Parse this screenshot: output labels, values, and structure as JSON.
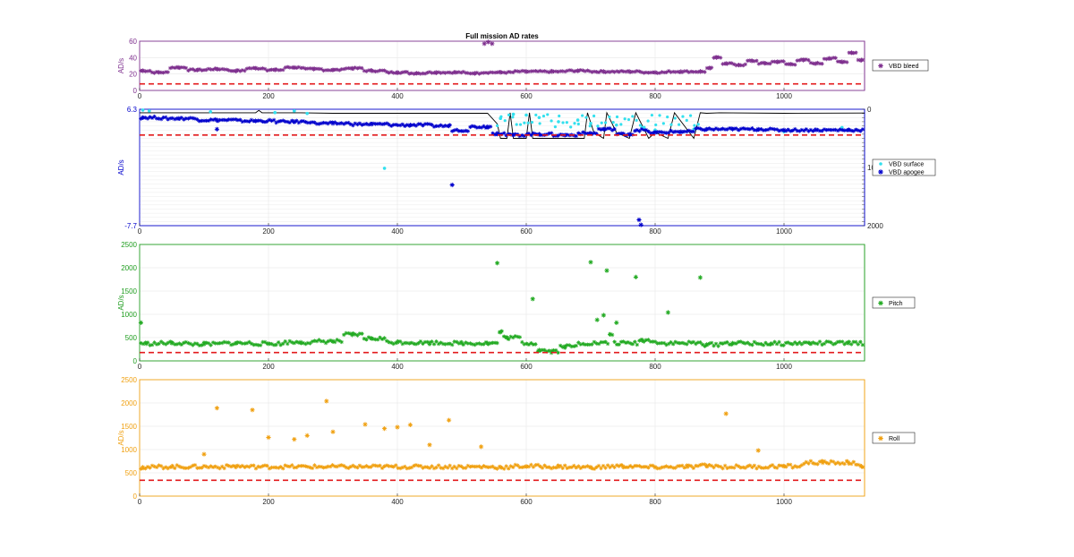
{
  "chart_data": [
    {
      "type": "scatter",
      "title": "Full mission AD rates",
      "ylabel": "AD/s",
      "color": "#7e2f8e",
      "xlim": [
        0,
        1125
      ],
      "ylim": [
        0,
        60
      ],
      "xticks": [
        0,
        200,
        400,
        600,
        800,
        1000
      ],
      "yticks": [
        0,
        20,
        40,
        60
      ],
      "legend": {
        "position": "right",
        "entries": [
          "VBD bleed"
        ]
      },
      "threshold": 8,
      "series": [
        {
          "name": "VBD bleed",
          "color": "#7e2f8e",
          "marker": "star",
          "points": [
            [
              5,
              24
            ],
            [
              30,
              22
            ],
            [
              60,
              28
            ],
            [
              90,
              25
            ],
            [
              120,
              26
            ],
            [
              150,
              24
            ],
            [
              180,
              27
            ],
            [
              210,
              25
            ],
            [
              240,
              28
            ],
            [
              270,
              26
            ],
            [
              300,
              25
            ],
            [
              330,
              27
            ],
            [
              360,
              24
            ],
            [
              400,
              22
            ],
            [
              430,
              21
            ],
            [
              460,
              22
            ],
            [
              490,
              22
            ],
            [
              520,
              21
            ],
            [
              535,
              57
            ],
            [
              541,
              59
            ],
            [
              547,
              57
            ],
            [
              560,
              22
            ],
            [
              600,
              23
            ],
            [
              640,
              23
            ],
            [
              680,
              24
            ],
            [
              720,
              23
            ],
            [
              760,
              23
            ],
            [
              800,
              22
            ],
            [
              840,
              23
            ],
            [
              870,
              23
            ],
            [
              885,
              27
            ],
            [
              895,
              40
            ],
            [
              910,
              33
            ],
            [
              930,
              31
            ],
            [
              950,
              36
            ],
            [
              970,
              33
            ],
            [
              990,
              35
            ],
            [
              1010,
              32
            ],
            [
              1030,
              37
            ],
            [
              1050,
              33
            ],
            [
              1070,
              39
            ],
            [
              1090,
              35
            ],
            [
              1105,
              46
            ],
            [
              1120,
              37
            ]
          ]
        }
      ]
    },
    {
      "type": "scatter",
      "ylabel": "AD/s",
      "color": "#0000cc",
      "xlim": [
        0,
        1125
      ],
      "ylim": [
        -7.7,
        6.3
      ],
      "xticks": [
        0,
        200,
        400,
        600,
        800,
        1000
      ],
      "yticks": [
        -7.7,
        6.3
      ],
      "y2ticks": [
        0,
        1000,
        2000
      ],
      "legend": {
        "position": "right",
        "entries": [
          "VBD surface",
          "VBD apogee"
        ]
      },
      "threshold": 3.2,
      "series": [
        {
          "name": "VBD surface",
          "color": "#33e0ee",
          "marker": "circle",
          "points": [
            [
              5,
              6.2
            ],
            [
              15,
              6.1
            ],
            [
              110,
              6.0
            ],
            [
              210,
              5.9
            ],
            [
              240,
              6.1
            ],
            [
              260,
              5.8
            ],
            [
              380,
              -0.8
            ],
            [
              560,
              5.2
            ],
            [
              580,
              5.7
            ],
            [
              600,
              5.6
            ],
            [
              620,
              5.3
            ],
            [
              650,
              4.8
            ],
            [
              680,
              5.0
            ],
            [
              700,
              4.6
            ],
            [
              740,
              4.4
            ],
            [
              780,
              4.1
            ],
            [
              800,
              3.8
            ],
            [
              860,
              3.9
            ],
            [
              1000,
              3.6
            ],
            [
              1090,
              4.1
            ]
          ]
        },
        {
          "name": "VBD apogee",
          "color": "#0000cc",
          "marker": "star",
          "points": [
            [
              5,
              5.3
            ],
            [
              60,
              5.2
            ],
            [
              120,
              5.0
            ],
            [
              180,
              4.9
            ],
            [
              240,
              4.8
            ],
            [
              300,
              4.6
            ],
            [
              360,
              4.5
            ],
            [
              420,
              4.4
            ],
            [
              480,
              4.3
            ],
            [
              540,
              4.2
            ],
            [
              555,
              3.4
            ],
            [
              580,
              3.2
            ],
            [
              620,
              3.3
            ],
            [
              660,
              3.2
            ],
            [
              700,
              3.4
            ],
            [
              720,
              3.9
            ],
            [
              760,
              3.3
            ],
            [
              800,
              3.5
            ],
            [
              840,
              3.6
            ],
            [
              880,
              3.9
            ],
            [
              920,
              3.9
            ],
            [
              960,
              3.9
            ],
            [
              1000,
              3.8
            ],
            [
              1050,
              3.8
            ],
            [
              1100,
              3.8
            ],
            [
              485,
              -2.8
            ],
            [
              775,
              -7.0
            ],
            [
              778,
              -7.6
            ],
            [
              120,
              3.9
            ]
          ]
        }
      ],
      "depth_line": {
        "name": "",
        "color": "#000000",
        "points": [
          [
            0,
            60
          ],
          [
            180,
            60
          ],
          [
            185,
            20
          ],
          [
            190,
            60
          ],
          [
            250,
            60
          ],
          [
            300,
            70
          ],
          [
            540,
            70
          ],
          [
            555,
            250
          ],
          [
            560,
            500
          ],
          [
            570,
            500
          ],
          [
            575,
            60
          ],
          [
            580,
            500
          ],
          [
            600,
            500
          ],
          [
            605,
            60
          ],
          [
            610,
            500
          ],
          [
            650,
            500
          ],
          [
            690,
            500
          ],
          [
            695,
            60
          ],
          [
            705,
            400
          ],
          [
            720,
            500
          ],
          [
            725,
            60
          ],
          [
            740,
            400
          ],
          [
            760,
            500
          ],
          [
            770,
            60
          ],
          [
            790,
            500
          ],
          [
            800,
            400
          ],
          [
            820,
            500
          ],
          [
            830,
            60
          ],
          [
            860,
            500
          ],
          [
            870,
            60
          ],
          [
            880,
            70
          ],
          [
            900,
            60
          ],
          [
            1000,
            70
          ],
          [
            1125,
            65
          ]
        ]
      }
    },
    {
      "type": "scatter",
      "ylabel": "AD/s",
      "color": "#1f9d1f",
      "xlim": [
        0,
        1125
      ],
      "ylim": [
        0,
        2500
      ],
      "xticks": [
        0,
        200,
        400,
        600,
        800,
        1000
      ],
      "yticks": [
        0,
        500,
        1000,
        1500,
        2000,
        2500
      ],
      "legend": {
        "position": "right",
        "entries": [
          "Pitch"
        ]
      },
      "threshold": 180,
      "series": [
        {
          "name": "Pitch",
          "color": "#22aa22",
          "marker": "star",
          "points": [
            [
              2,
              820
            ],
            [
              10,
              370
            ],
            [
              50,
              380
            ],
            [
              100,
              360
            ],
            [
              150,
              380
            ],
            [
              200,
              370
            ],
            [
              250,
              400
            ],
            [
              300,
              420
            ],
            [
              330,
              560
            ],
            [
              360,
              480
            ],
            [
              400,
              400
            ],
            [
              450,
              390
            ],
            [
              500,
              380
            ],
            [
              540,
              380
            ],
            [
              555,
              2100
            ],
            [
              560,
              620
            ],
            [
              570,
              500
            ],
            [
              610,
              1330
            ],
            [
              620,
              230
            ],
            [
              640,
              210
            ],
            [
              660,
              310
            ],
            [
              700,
              2120
            ],
            [
              710,
              880
            ],
            [
              720,
              980
            ],
            [
              725,
              1940
            ],
            [
              730,
              570
            ],
            [
              740,
              820
            ],
            [
              770,
              1800
            ],
            [
              780,
              440
            ],
            [
              820,
              1040
            ],
            [
              870,
              1790
            ],
            [
              880,
              350
            ],
            [
              920,
              380
            ],
            [
              980,
              370
            ],
            [
              1040,
              380
            ],
            [
              1100,
              380
            ]
          ]
        }
      ]
    },
    {
      "type": "scatter",
      "ylabel": "AD/s",
      "color": "#f0a010",
      "xlim": [
        0,
        1125
      ],
      "ylim": [
        0,
        2500
      ],
      "xticks": [
        0,
        200,
        400,
        600,
        800,
        1000
      ],
      "yticks": [
        0,
        500,
        1000,
        1500,
        2000,
        2500
      ],
      "legend": {
        "position": "right",
        "entries": [
          "Roll"
        ]
      },
      "threshold": 340,
      "series": [
        {
          "name": "Roll",
          "color": "#f0a010",
          "marker": "star",
          "points": [
            [
              5,
              620
            ],
            [
              50,
              630
            ],
            [
              100,
              900
            ],
            [
              120,
              1890
            ],
            [
              150,
              640
            ],
            [
              175,
              1850
            ],
            [
              200,
              1260
            ],
            [
              240,
              1220
            ],
            [
              260,
              1300
            ],
            [
              290,
              2040
            ],
            [
              300,
              1380
            ],
            [
              350,
              1540
            ],
            [
              380,
              1450
            ],
            [
              400,
              1480
            ],
            [
              420,
              1530
            ],
            [
              450,
              1100
            ],
            [
              480,
              1630
            ],
            [
              530,
              1060
            ],
            [
              560,
              620
            ],
            [
              600,
              640
            ],
            [
              650,
              630
            ],
            [
              700,
              620
            ],
            [
              750,
              640
            ],
            [
              800,
              620
            ],
            [
              850,
              630
            ],
            [
              880,
              650
            ],
            [
              910,
              1770
            ],
            [
              960,
              980
            ],
            [
              1000,
              640
            ],
            [
              1060,
              720
            ],
            [
              1100,
              720
            ],
            [
              1120,
              640
            ]
          ]
        }
      ]
    }
  ]
}
